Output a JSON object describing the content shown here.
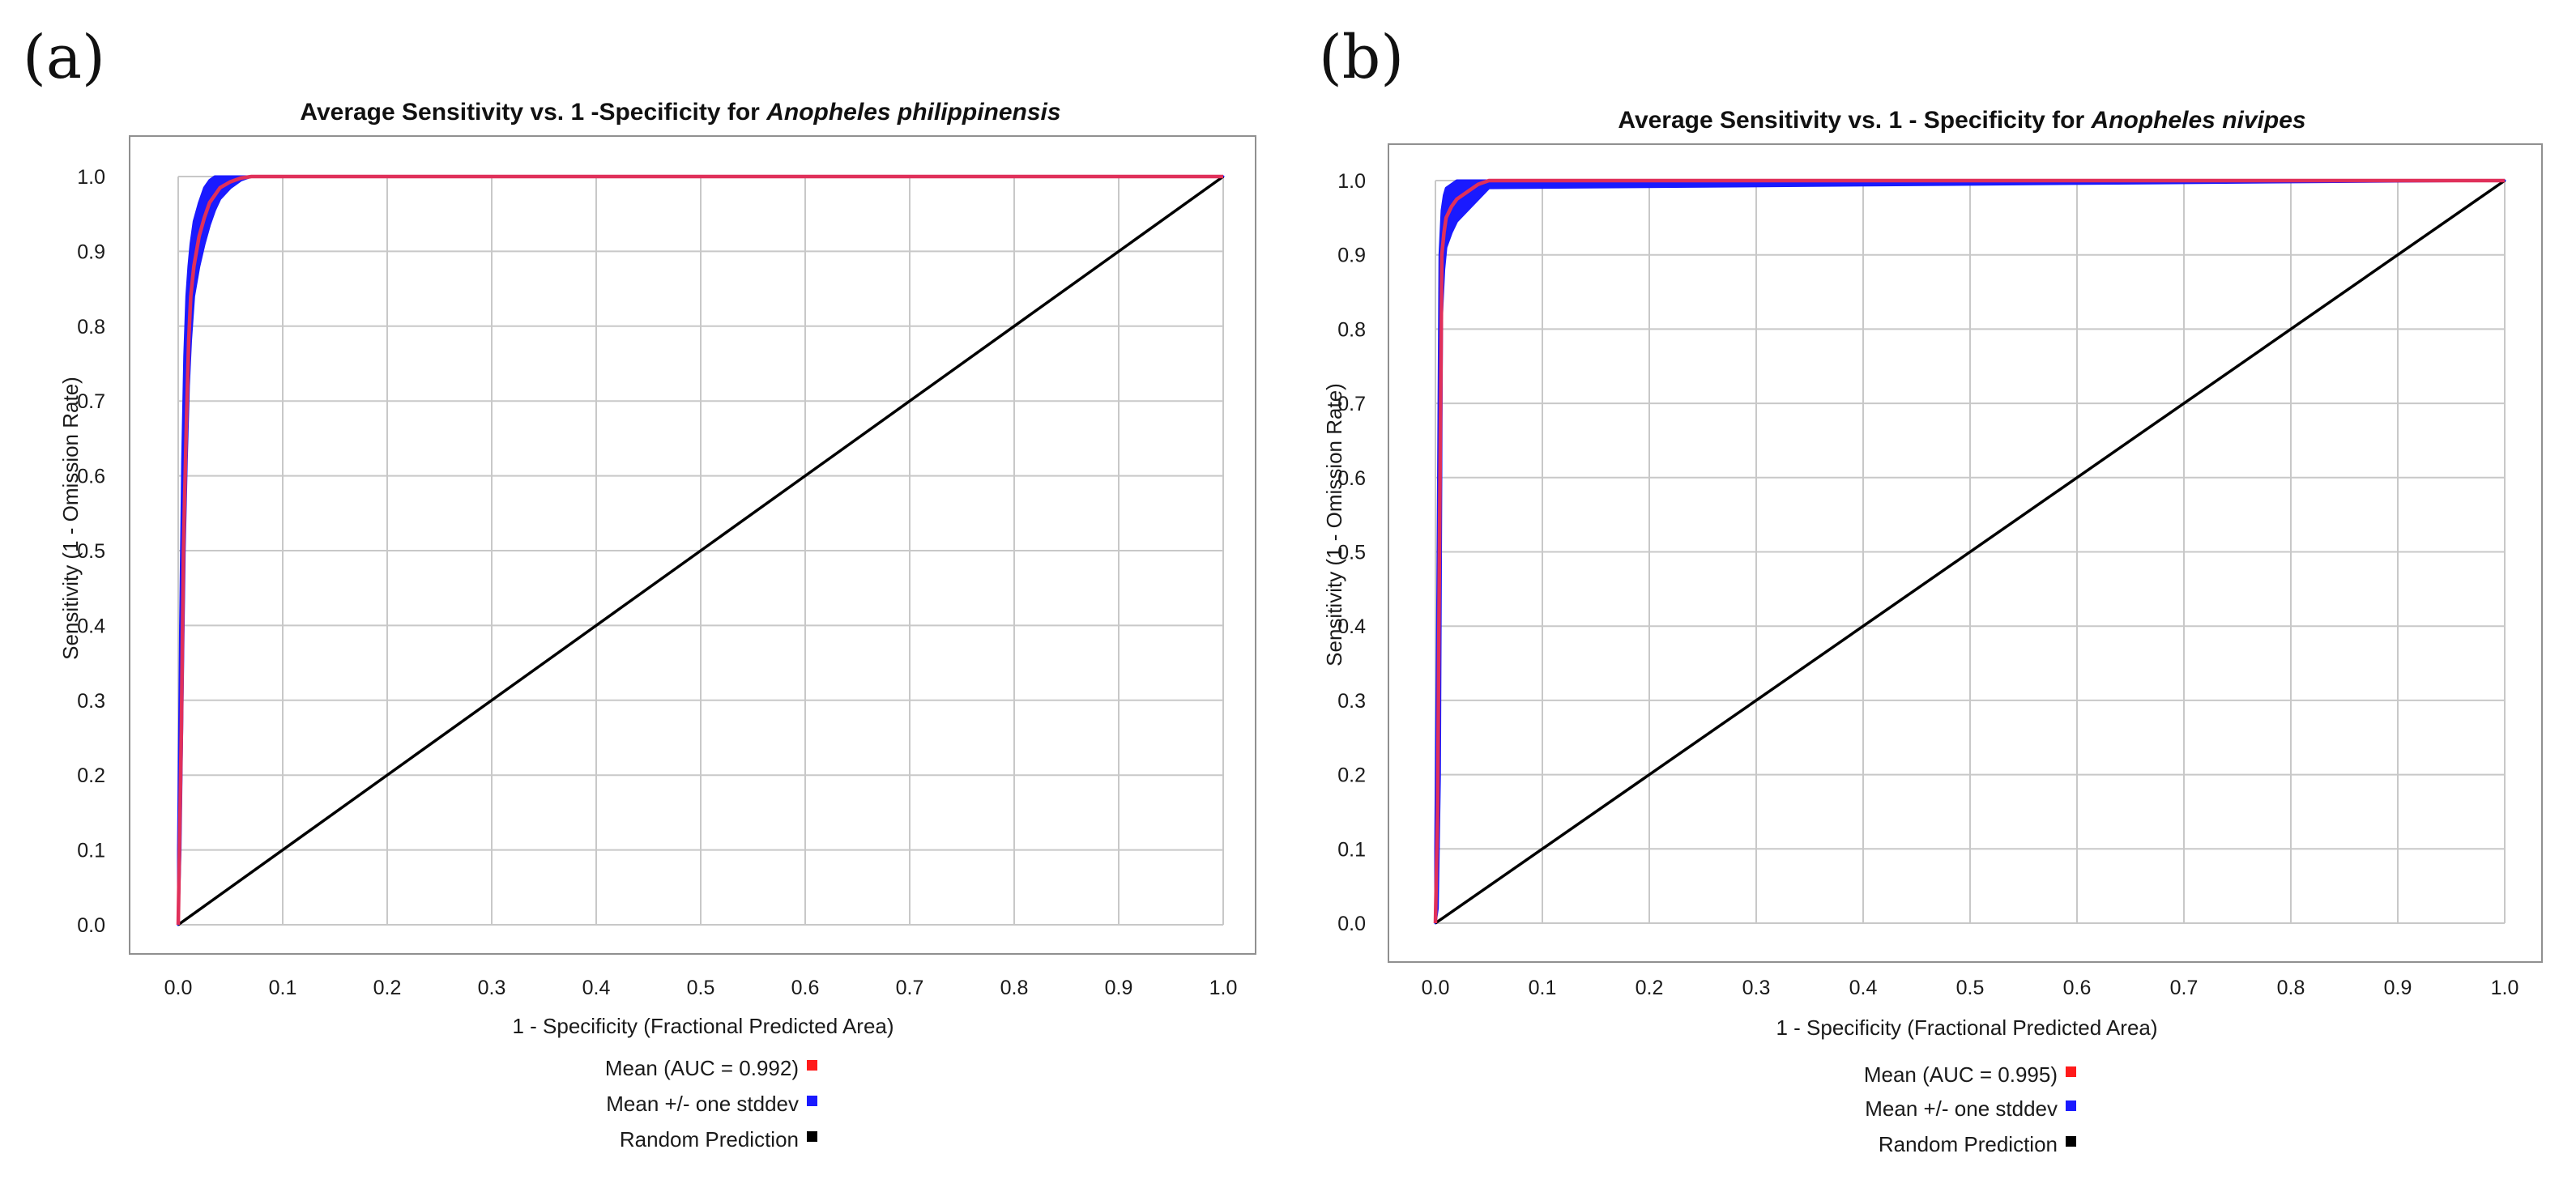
{
  "figure": {
    "panel_labels": [
      "(a)",
      "(b)"
    ]
  },
  "chart_data": [
    {
      "type": "line",
      "panel": "(a)",
      "title": "Average Sensitivity vs. 1 -Specificity for ",
      "title_species": "Anopheles philippinensis",
      "xlabel": "1 - Specificity (Fractional Predicted Area)",
      "ylabel": "Sensitivity (1 - Omission Rate)",
      "xlim": [
        0,
        1
      ],
      "ylim": [
        0,
        1
      ],
      "grid": true,
      "x_ticks": [
        "0.0",
        "0.1",
        "0.2",
        "0.3",
        "0.4",
        "0.5",
        "0.6",
        "0.7",
        "0.8",
        "0.9",
        "1.0"
      ],
      "y_ticks": [
        "0.0",
        "0.1",
        "0.2",
        "0.3",
        "0.4",
        "0.5",
        "0.6",
        "0.7",
        "0.8",
        "0.9",
        "1.0"
      ],
      "legend_placement": "bottom-center",
      "colors": {
        "mean": "#ff1a1a",
        "stddev": "#1a1aff",
        "random": "#000000",
        "mean_line": "#e0305a",
        "grid": "#c8c8c8",
        "axis": "#808080",
        "plot_bg": "#ffffff",
        "frame_bg": "#ffffff"
      },
      "series": [
        {
          "name": "Mean (AUC = 0.992)",
          "role": "mean",
          "x": [
            0,
            0.003,
            0.005,
            0.008,
            0.01,
            0.012,
            0.015,
            0.02,
            0.025,
            0.03,
            0.04,
            0.05,
            0.06,
            0.07,
            1.0
          ],
          "y": [
            0,
            0.26,
            0.5,
            0.68,
            0.78,
            0.84,
            0.88,
            0.92,
            0.945,
            0.965,
            0.985,
            0.993,
            0.998,
            1.0,
            1.0
          ]
        },
        {
          "name": "Mean +/- one stddev",
          "role": "stddev",
          "x": [
            0,
            0.002,
            0.004,
            0.006,
            0.008,
            0.01,
            0.012,
            0.015,
            0.02,
            0.025,
            0.03,
            0.035,
            0.04,
            0.05,
            0.06,
            0.07,
            1.0
          ],
          "upper": [
            0.1,
            0.4,
            0.62,
            0.76,
            0.84,
            0.88,
            0.91,
            0.94,
            0.965,
            0.985,
            0.995,
            1.0,
            1.0,
            1.0,
            1.0,
            1.0,
            1.0
          ],
          "lower": [
            0,
            0.1,
            0.3,
            0.5,
            0.62,
            0.72,
            0.78,
            0.84,
            0.88,
            0.91,
            0.935,
            0.955,
            0.97,
            0.985,
            0.995,
            1.0,
            1.0
          ]
        },
        {
          "name": "Random Prediction",
          "role": "random",
          "x": [
            0,
            1
          ],
          "y": [
            0,
            1
          ]
        }
      ]
    },
    {
      "type": "line",
      "panel": "(b)",
      "title": "Average Sensitivity vs. 1 - Specificity for ",
      "title_species": "Anopheles nivipes",
      "xlabel": "1 - Specificity (Fractional Predicted Area)",
      "ylabel": "Sensitivity (1 - Omission Rate)",
      "xlim": [
        0,
        1
      ],
      "ylim": [
        0,
        1
      ],
      "grid": true,
      "x_ticks": [
        "0.0",
        "0.1",
        "0.2",
        "0.3",
        "0.4",
        "0.5",
        "0.6",
        "0.7",
        "0.8",
        "0.9",
        "1.0"
      ],
      "y_ticks": [
        "0.0",
        "0.1",
        "0.2",
        "0.3",
        "0.4",
        "0.5",
        "0.6",
        "0.7",
        "0.8",
        "0.9",
        "1.0"
      ],
      "legend_placement": "bottom-center",
      "colors": {
        "mean": "#ff1a1a",
        "stddev": "#1a1aff",
        "random": "#000000",
        "mean_line": "#e0305a",
        "grid": "#c8c8c8",
        "axis": "#808080",
        "plot_bg": "#ffffff",
        "frame_bg": "#ffffff"
      },
      "series": [
        {
          "name": "Mean (AUC = 0.995)",
          "role": "mean",
          "x": [
            0,
            0.002,
            0.004,
            0.006,
            0.008,
            0.01,
            0.015,
            0.02,
            0.03,
            0.04,
            0.05,
            1.0
          ],
          "y": [
            0,
            0.15,
            0.55,
            0.9,
            0.93,
            0.95,
            0.965,
            0.975,
            0.985,
            0.995,
            1.0,
            1.0
          ]
        },
        {
          "name": "Mean +/- one stddev",
          "role": "stddev",
          "x": [
            0,
            0.002,
            0.004,
            0.006,
            0.008,
            0.01,
            0.015,
            0.02,
            0.03,
            0.04,
            0.05,
            1.0
          ],
          "upper": [
            0.1,
            0.45,
            0.9,
            0.96,
            0.98,
            0.99,
            0.995,
            1.0,
            1.0,
            1.0,
            1.0,
            1.0
          ],
          "lower": [
            0,
            0.02,
            0.2,
            0.82,
            0.88,
            0.91,
            0.93,
            0.945,
            0.96,
            0.975,
            0.99,
            1.0
          ]
        },
        {
          "name": "Random Prediction",
          "role": "random",
          "x": [
            0,
            1
          ],
          "y": [
            0,
            1
          ]
        }
      ]
    }
  ]
}
